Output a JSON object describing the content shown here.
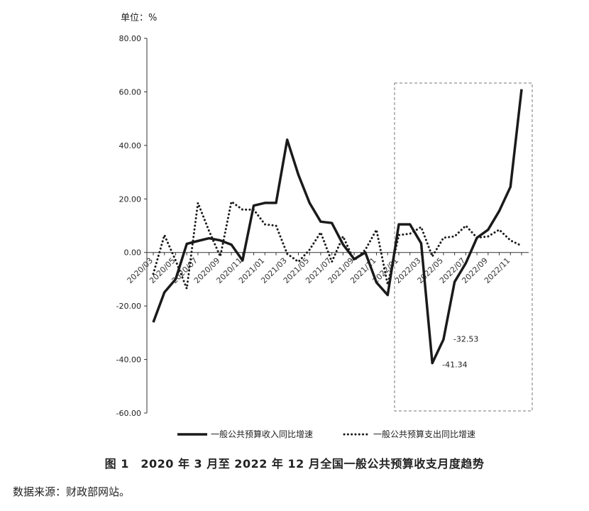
{
  "unit_label": "单位：%",
  "caption": "图 1　2020 年 3 月至 2022 年 12 月全国一般公共预算收支月度趋势",
  "source": "数据来源：财政部网站。",
  "chart_data": {
    "type": "line",
    "ylim": [
      -60,
      80
    ],
    "yticks": [
      80,
      60,
      40,
      20,
      0,
      -20,
      -40,
      -60
    ],
    "ytick_labels": [
      "80.00",
      "60.00",
      "40.00",
      "20.00",
      "0.00",
      "-20.00",
      "-40.00",
      "-60.00"
    ],
    "x": [
      "2020/03",
      "2020/04",
      "2020/05",
      "2020/06",
      "2020/07",
      "2020/08",
      "2020/09",
      "2020/10",
      "2020/11",
      "2020/12",
      "2021/01",
      "2021/02",
      "2021/03",
      "2021/04",
      "2021/05",
      "2021/06",
      "2021/07",
      "2021/08",
      "2021/09",
      "2021/10",
      "2021/11",
      "2021/12",
      "2022/01",
      "2022/02",
      "2022/03",
      "2022/04",
      "2022/05",
      "2022/06",
      "2022/07",
      "2022/08",
      "2022/09",
      "2022/10",
      "2022/11",
      "2022/12"
    ],
    "xtick_labels": [
      "2020/03",
      "2020/05",
      "2020/07",
      "2020/09",
      "2020/11",
      "2021/01",
      "2021/03",
      "2021/05",
      "2021/07",
      "2021/09",
      "2021/11",
      "2022/01",
      "2022/03",
      "2022/05",
      "2022/07",
      "2022/09",
      "2022/11"
    ],
    "series": [
      {
        "name": "一般公共预算收入同比增速",
        "style": "solid",
        "color": "#1a1a1a",
        "values": [
          -26.1,
          -14.9,
          -10.0,
          3.2,
          4.3,
          5.3,
          4.5,
          2.9,
          -3.0,
          17.5,
          18.5,
          18.5,
          42.1,
          29.0,
          18.5,
          11.5,
          11.0,
          3.0,
          -2.5,
          0.0,
          -11.2,
          -15.9,
          10.5,
          10.5,
          3.4,
          -41.34,
          -32.53,
          -11.0,
          -4.0,
          5.5,
          8.5,
          15.5,
          24.5,
          61.0
        ]
      },
      {
        "name": "一般公共预算支出同比增速",
        "style": "dotted",
        "color": "#1a1a1a",
        "values": [
          -8.0,
          6.5,
          -3.0,
          -13.5,
          18.5,
          8.0,
          -1.5,
          19.0,
          16.0,
          16.0,
          10.5,
          10.0,
          -0.5,
          -3.5,
          1.0,
          7.5,
          -3.5,
          6.0,
          -3.0,
          1.0,
          8.5,
          -12.0,
          6.5,
          7.0,
          9.5,
          -1.5,
          5.5,
          6.0,
          10.0,
          5.5,
          6.0,
          8.5,
          4.5,
          2.5
        ]
      }
    ],
    "annotations": [
      {
        "text": "-41.34",
        "x": "2022/04",
        "y": -41.34
      },
      {
        "text": "-32.53",
        "x": "2022/05",
        "y": -32.53
      }
    ],
    "highlight_range": {
      "from": "2022/01",
      "to": "2022/12",
      "style": "dashed-box"
    },
    "legend_position": "bottom",
    "grid": false
  }
}
